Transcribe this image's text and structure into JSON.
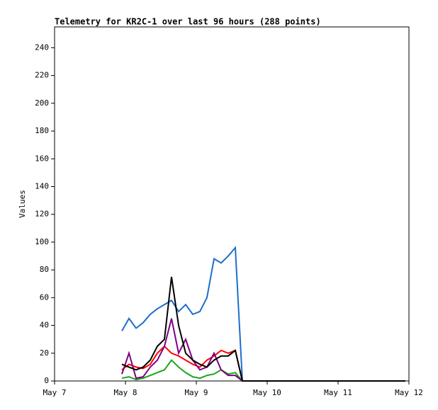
{
  "chart_data": {
    "type": "line",
    "title": "Telemetry for KR2C-1 over last 96 hours (288 points)",
    "y_label": "Values",
    "x": [
      0.95,
      1.05,
      1.15,
      1.25,
      1.35,
      1.45,
      1.55,
      1.65,
      1.75,
      1.85,
      1.95,
      2.05,
      2.15,
      2.25,
      2.35,
      2.45,
      2.55,
      2.65,
      4.95
    ],
    "series": [
      {
        "color": "#1c6fc9",
        "values": [
          36,
          45,
          38,
          42,
          48,
          52,
          55,
          58,
          50,
          55,
          48,
          50,
          60,
          88,
          85,
          90,
          96,
          0,
          0
        ]
      },
      {
        "color": "#ff0000",
        "values": [
          8,
          12,
          10,
          9,
          12,
          20,
          25,
          20,
          18,
          15,
          12,
          10,
          15,
          18,
          22,
          20,
          22,
          0,
          0
        ]
      },
      {
        "color": "#1aa51a",
        "values": [
          2,
          3,
          1,
          2,
          4,
          6,
          8,
          15,
          10,
          6,
          3,
          2,
          4,
          5,
          8,
          5,
          6,
          0,
          0
        ]
      },
      {
        "color": "#800080",
        "values": [
          5,
          20,
          2,
          3,
          10,
          15,
          25,
          45,
          20,
          30,
          15,
          8,
          10,
          20,
          8,
          4,
          4,
          0,
          0
        ]
      },
      {
        "color": "#000000",
        "values": [
          12,
          10,
          8,
          10,
          15,
          25,
          30,
          75,
          40,
          20,
          15,
          12,
          10,
          15,
          18,
          18,
          22,
          0,
          0
        ]
      }
    ],
    "xlim": [
      0,
      5
    ],
    "xticks": [
      {
        "value": 0,
        "label": "May 7"
      },
      {
        "value": 1,
        "label": "May 8"
      },
      {
        "value": 2,
        "label": "May 9"
      },
      {
        "value": 3,
        "label": "May 10"
      },
      {
        "value": 4,
        "label": "May 11"
      },
      {
        "value": 5,
        "label": "May 12"
      }
    ],
    "ylim": [
      0,
      255
    ],
    "yticks": [
      0,
      20,
      40,
      60,
      80,
      100,
      120,
      140,
      160,
      180,
      200,
      220,
      240
    ]
  }
}
